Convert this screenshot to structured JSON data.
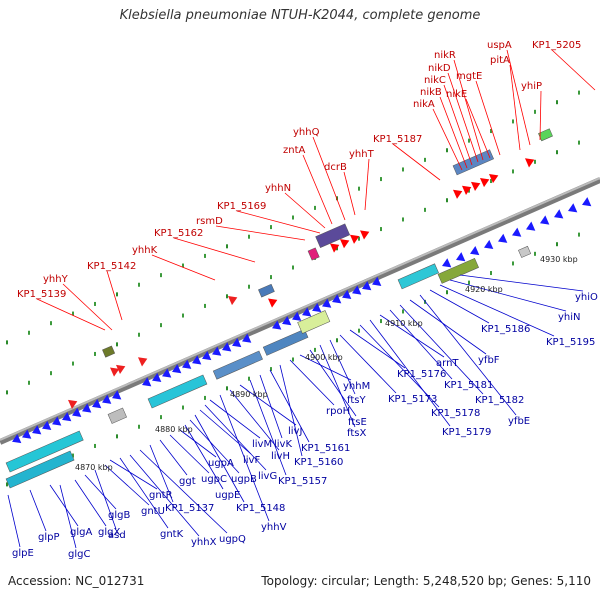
{
  "title": "Klebsiella pneumoniae NTUH-K2044, complete genome",
  "footer": {
    "accession": "Accession: NC_012731",
    "summary": "Topology: circular; Length: 5,248,520 bp; Genes: 5,110"
  },
  "colors": {
    "red_label": "#cc0000",
    "blue_label": "#0000b0",
    "forward_gene": "#ff0000",
    "reverse_gene": "#0000ff",
    "backbone": "#888888"
  },
  "kbp_ticks": [
    "4870 kbp",
    "4880 kbp",
    "4890 kbp",
    "4900 kbp",
    "4910 kbp",
    "4920 kbp",
    "4930 kbp"
  ],
  "red_labels": [
    "KP1_5139",
    "yhhY",
    "KP1_5142",
    "yhhK",
    "KP1_5162",
    "rsmD",
    "KP1_5169",
    "yhhN",
    "zntA",
    "yhhQ",
    "dcrB",
    "yhhT",
    "KP1_5187",
    "nikA",
    "nikB",
    "nikC",
    "nikD",
    "nikR",
    "nikE",
    "mgtE",
    "pitA",
    "uspA",
    "yhiP",
    "KP1_5205"
  ],
  "blue_labels": [
    "glpE",
    "glpP",
    "glgA",
    "glgC",
    "glgX",
    "glgB",
    "asd",
    "gntU",
    "gntR",
    "gntK",
    "yhhX",
    "ugpQ",
    "KP1_5137",
    "ggt",
    "ugpC",
    "ugpA",
    "ugpE",
    "ugpB",
    "KP1_5148",
    "livF",
    "livG",
    "livM",
    "yhhV",
    "livH",
    "livJ",
    "KP1_5157",
    "livK",
    "KP1_5161",
    "KP1_5160",
    "rpoH",
    "yhhM",
    "ftsE",
    "ftsX",
    "ftsY",
    "KP1_5173",
    "KP1_5176",
    "KP1_5178",
    "KP1_5179",
    "arnT",
    "KP1_5181",
    "KP1_5182",
    "yfbF",
    "yfbE",
    "KP1_5186",
    "KP1_5195",
    "yhiN",
    "yhiO"
  ]
}
